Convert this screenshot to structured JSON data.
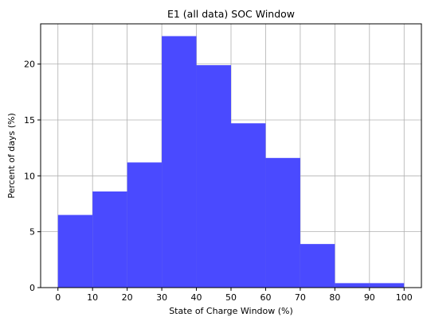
{
  "chart_data": {
    "type": "bar",
    "title": "E1 (all data) SOC Window",
    "xlabel": "State of Charge Window (%)",
    "ylabel": "Percent of days (%)",
    "bins": [
      {
        "start": 0,
        "end": 10,
        "value": 6.5
      },
      {
        "start": 10,
        "end": 20,
        "value": 8.6
      },
      {
        "start": 20,
        "end": 30,
        "value": 11.2
      },
      {
        "start": 30,
        "end": 40,
        "value": 22.5
      },
      {
        "start": 40,
        "end": 50,
        "value": 19.9
      },
      {
        "start": 50,
        "end": 60,
        "value": 14.7
      },
      {
        "start": 60,
        "end": 70,
        "value": 11.6
      },
      {
        "start": 70,
        "end": 80,
        "value": 3.9
      },
      {
        "start": 80,
        "end": 90,
        "value": 0.4
      },
      {
        "start": 90,
        "end": 100,
        "value": 0.4
      }
    ],
    "xlim": [
      -5,
      105
    ],
    "ylim": [
      0,
      23.6
    ],
    "xticks": [
      0,
      10,
      20,
      30,
      40,
      50,
      60,
      70,
      80,
      90,
      100
    ],
    "yticks": [
      0,
      5,
      10,
      15,
      20
    ],
    "grid": true,
    "bar_color": "#4a4aff",
    "grid_color": "#b0b0b0"
  }
}
